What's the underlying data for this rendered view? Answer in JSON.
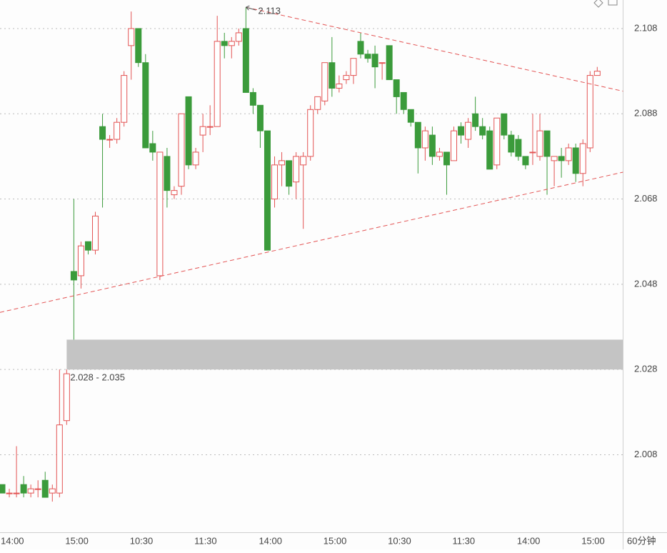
{
  "chart_data": {
    "type": "candlestick",
    "categories": [
      "14:00",
      null,
      null,
      null,
      null,
      null,
      null,
      null,
      null,
      "15:00",
      null,
      null,
      null,
      null,
      null,
      null,
      null,
      null,
      "10:30",
      null,
      null,
      null,
      null,
      null,
      null,
      null,
      null,
      "11:30",
      null,
      null,
      null,
      null,
      null,
      null,
      null,
      null,
      "14:00",
      null,
      null,
      null,
      null,
      null,
      null,
      null,
      null,
      "15:00",
      null,
      null,
      null,
      null,
      null,
      null,
      null,
      null,
      "10:30",
      null,
      null,
      null,
      null,
      null,
      null,
      null,
      null,
      "11:30",
      null,
      null,
      null,
      null,
      null,
      null,
      null,
      null,
      "14:00",
      null,
      null,
      null,
      null,
      null,
      null,
      null,
      null,
      "15:00",
      null,
      null
    ],
    "open": [
      2.001,
      1.999,
      1.999,
      2.001,
      1.999,
      2.0,
      2.002,
      1.999,
      1.999,
      2.016,
      2.051,
      2.05,
      2.058,
      2.056,
      2.085,
      2.082,
      2.082,
      2.086,
      2.104,
      2.108,
      2.1,
      2.081,
      2.05,
      2.078,
      2.069,
      2.071,
      2.092,
      2.076,
      2.083,
      2.085,
      2.085,
      2.105,
      2.104,
      2.105,
      2.108,
      2.093,
      2.09,
      2.084,
      2.068,
      2.076,
      2.077,
      2.072,
      2.076,
      2.078,
      2.089,
      2.091,
      2.1,
      2.094,
      2.096,
      2.097,
      2.105,
      2.102,
      2.102,
      2.1,
      2.104,
      2.096,
      2.093,
      2.089,
      2.086,
      2.08,
      2.083,
      2.078,
      2.079,
      2.077,
      2.085,
      2.082,
      2.088,
      2.085,
      2.084,
      2.076,
      2.088,
      2.083,
      2.082,
      2.078,
      2.079,
      2.078,
      2.084,
      2.077,
      2.078,
      2.077,
      2.08,
      2.074,
      2.08,
      2.097
    ],
    "high": [
      2.001,
      2.0,
      2.01,
      2.003,
      2.001,
      2.002,
      2.004,
      2.001,
      2.028,
      2.028,
      2.068,
      2.058,
      2.058,
      2.065,
      2.088,
      2.083,
      2.087,
      2.098,
      2.112,
      2.108,
      2.102,
      2.084,
      2.079,
      2.08,
      2.071,
      2.088,
      2.092,
      2.08,
      2.088,
      2.09,
      2.111,
      2.107,
      2.106,
      2.108,
      2.113,
      2.094,
      2.09,
      2.084,
      2.078,
      2.079,
      2.077,
      2.079,
      2.079,
      2.09,
      2.092,
      2.1,
      2.106,
      2.097,
      2.098,
      2.101,
      2.107,
      2.103,
      2.104,
      2.1,
      2.104,
      2.096,
      2.093,
      2.089,
      2.086,
      2.085,
      2.085,
      2.08,
      2.079,
      2.085,
      2.086,
      2.087,
      2.092,
      2.087,
      2.085,
      2.087,
      2.088,
      2.084,
      2.083,
      2.078,
      2.088,
      2.088,
      2.084,
      2.078,
      2.08,
      2.081,
      2.081,
      2.082,
      2.098,
      2.099
    ],
    "low": [
      1.999,
      1.998,
      1.998,
      1.998,
      1.998,
      1.998,
      1.998,
      1.997,
      1.998,
      2.015,
      2.035,
      2.047,
      2.055,
      2.055,
      2.066,
      2.08,
      2.081,
      2.085,
      2.096,
      2.099,
      2.08,
      2.077,
      2.049,
      2.066,
      2.068,
      2.069,
      2.075,
      2.075,
      2.079,
      2.083,
      2.085,
      2.101,
      2.101,
      2.104,
      2.093,
      2.088,
      2.08,
      2.056,
      2.066,
      2.071,
      2.069,
      2.068,
      2.061,
      2.077,
      2.088,
      2.09,
      2.092,
      2.093,
      2.095,
      2.095,
      2.101,
      2.1,
      2.094,
      2.096,
      2.096,
      2.088,
      2.088,
      2.085,
      2.074,
      2.077,
      2.076,
      2.077,
      2.069,
      2.077,
      2.081,
      2.08,
      2.084,
      2.082,
      2.075,
      2.075,
      2.082,
      2.078,
      2.077,
      2.075,
      2.076,
      2.077,
      2.069,
      2.071,
      2.073,
      2.076,
      2.072,
      2.071,
      2.079,
      2.097
    ],
    "close": [
      1.999,
      1.999,
      1.999,
      1.999,
      2.0,
      2.0,
      1.998,
      2.0,
      2.015,
      2.027,
      2.049,
      2.057,
      2.056,
      2.064,
      2.082,
      2.082,
      2.086,
      2.097,
      2.108,
      2.1,
      2.08,
      2.079,
      2.079,
      2.07,
      2.07,
      2.088,
      2.076,
      2.079,
      2.085,
      2.085,
      2.105,
      2.104,
      2.105,
      2.107,
      2.093,
      2.09,
      2.084,
      2.056,
      2.076,
      2.077,
      2.071,
      2.078,
      2.078,
      2.089,
      2.092,
      2.1,
      2.094,
      2.095,
      2.097,
      2.101,
      2.102,
      2.101,
      2.099,
      2.1,
      2.096,
      2.092,
      2.089,
      2.086,
      2.08,
      2.084,
      2.078,
      2.079,
      2.076,
      2.084,
      2.083,
      2.086,
      2.085,
      2.083,
      2.075,
      2.087,
      2.083,
      2.079,
      2.078,
      2.076,
      2.079,
      2.084,
      2.078,
      2.078,
      2.077,
      2.08,
      2.074,
      2.081,
      2.097,
      2.098
    ],
    "up_color": "#e35353",
    "down_color": "#3b9b3b",
    "ylim": [
      1.9898,
      2.1147
    ],
    "yticks": [
      2.008,
      2.028,
      2.048,
      2.068,
      2.088,
      2.108
    ],
    "grid": true,
    "period_label": "60分钟",
    "high_annotation": {
      "index": 34,
      "value": 2.113
    },
    "zone": {
      "label": "2.028 - 2.035",
      "from": 2.028,
      "to": 2.035,
      "start": 9
    },
    "trendlines": [
      {
        "color": "#e35353",
        "points": [
          [
            34,
            2.113
          ],
          [
            86.6,
            2.0933
          ]
        ]
      },
      {
        "color": "#e35353",
        "points": [
          [
            -0.3,
            2.0414
          ],
          [
            86.6,
            2.0743
          ]
        ]
      }
    ]
  }
}
